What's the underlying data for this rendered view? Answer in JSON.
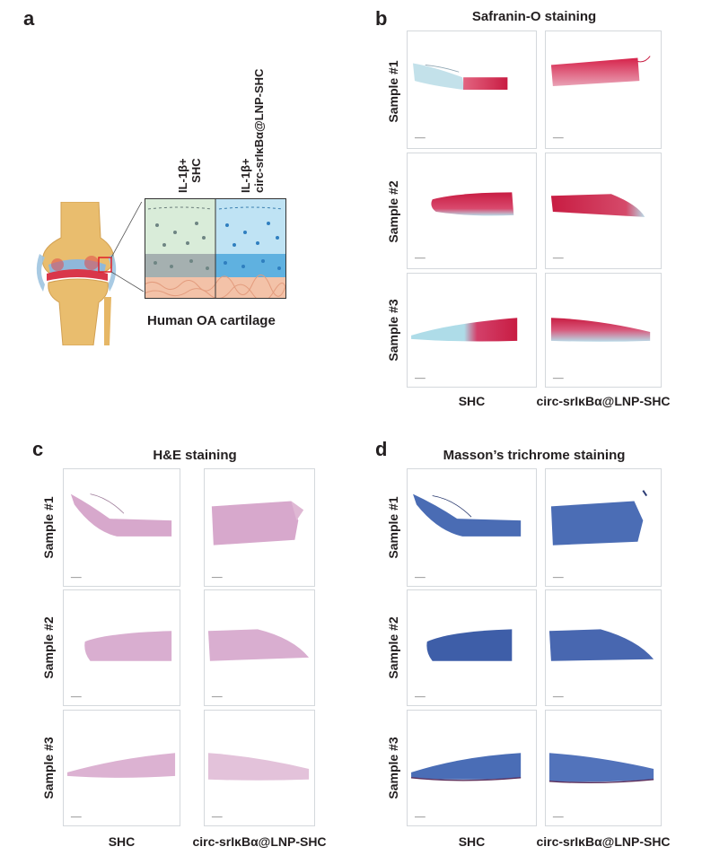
{
  "panels": {
    "a": {
      "letter": "a",
      "col1_line1": "IL-1β+",
      "col1_line2": "SHC",
      "col2_line1": "IL-1β+",
      "col2_line2": "circ-srIκBα@LNP-SHC",
      "caption": "Human OA cartilage"
    },
    "b": {
      "letter": "b",
      "title": "Safranin-O staining"
    },
    "c": {
      "letter": "c",
      "title": "H&E staining"
    },
    "d": {
      "letter": "d",
      "title": "Masson’s trichrome staining"
    }
  },
  "rows": [
    "Sample #1",
    "Sample #2",
    "Sample #3"
  ],
  "columns": [
    "SHC",
    "circ-srIκBα@LNP-SHC"
  ],
  "colors": {
    "safranin_red": "#d4264a",
    "safranin_blue": "#a8d8e6",
    "he_pink": "#d7a8cc",
    "masson_blue": "#3e5ea8",
    "bone": "#e9bd6e",
    "cartilage_green": "#d9ecd9",
    "cartilage_blue": "#8ecdec"
  }
}
